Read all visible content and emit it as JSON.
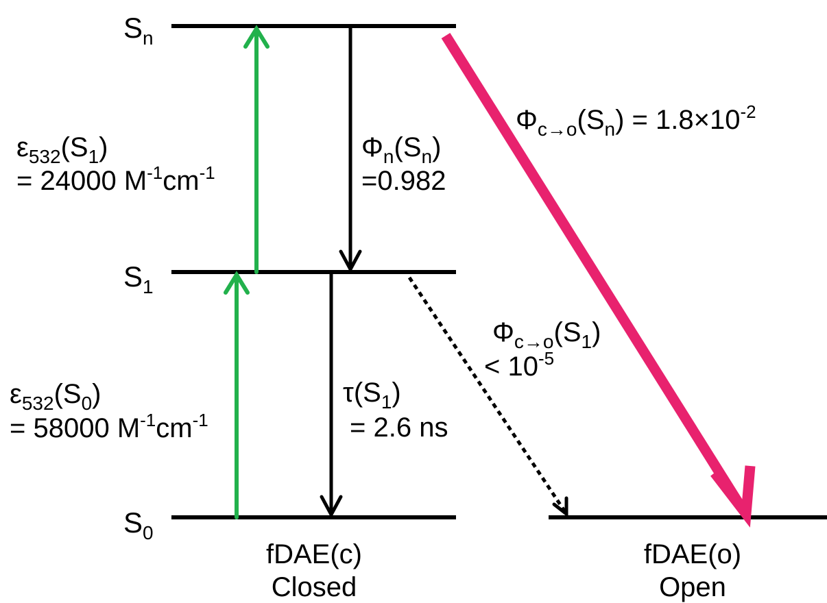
{
  "colors": {
    "level": "#000000",
    "excitation": "#22b14c",
    "photoswitch": "#e8226e",
    "decay": "#000000"
  },
  "states": {
    "sn": {
      "base": "S",
      "sub": "n"
    },
    "s1": {
      "base": "S",
      "sub": "1"
    },
    "s0": {
      "base": "S",
      "sub": "0"
    }
  },
  "labels": {
    "eps_s1": {
      "sym": "ε",
      "sub": "532",
      "open": "(S",
      "sub2": "1",
      "close": ")"
    },
    "eps_s1_val": {
      "pre": "= 24000 M",
      "sup1": "-1",
      "mid": "cm",
      "sup2": "-1"
    },
    "eps_s0": {
      "sym": "ε",
      "sub": "532",
      "open": "(S",
      "sub2": "0",
      "close": ")"
    },
    "eps_s0_val": {
      "pre": "= 58000 M",
      "sup1": "-1",
      "mid": "cm",
      "sup2": "-1"
    },
    "phi_n": {
      "sym": "Φ",
      "sub": "n",
      "open": "(S",
      "sub2": "n",
      "close": ")"
    },
    "phi_n_val": "=0.982",
    "tau": {
      "sym": "τ",
      "open": "(S",
      "sub": "1",
      "close": ")"
    },
    "tau_val": "= 2.6 ns",
    "phi_co_sn": {
      "sym": "Φ",
      "sub": "c→o",
      "open": "(S",
      "sub2": "n",
      "close": ")",
      "pre": " = 1.8×10",
      "sup": "-2"
    },
    "phi_co_s1": {
      "sym": "Φ",
      "sub": "c→o",
      "open": "(S",
      "sub2": "1",
      "close": ")"
    },
    "phi_co_s1_val": {
      "pre": "< 10",
      "sup": "-5"
    }
  },
  "isomers": {
    "closed": {
      "name": "fDAE(c)",
      "form": "Closed"
    },
    "open": {
      "name": "fDAE(o)",
      "form": "Open"
    }
  }
}
